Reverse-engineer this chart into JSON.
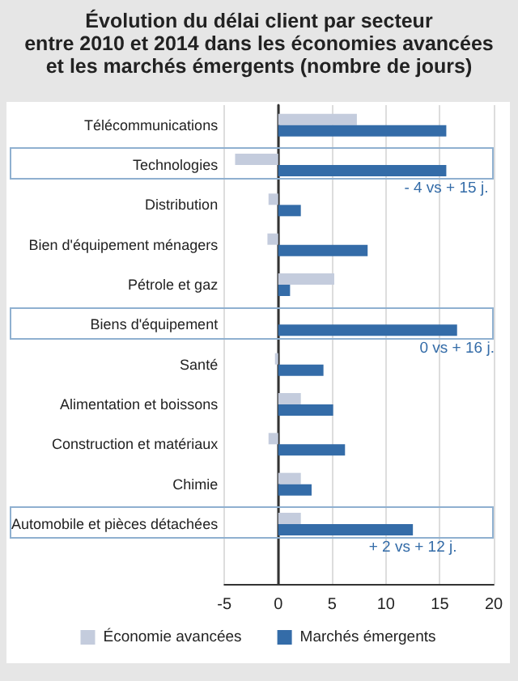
{
  "chart_data": {
    "type": "bar",
    "orientation": "horizontal",
    "title": "Évolution du délai client par secteur\nentre 2010 et 2014 dans les économies avancées\net les marchés émergents (nombre de jours)",
    "categories": [
      "Télécommunications",
      "Technologies",
      "Distribution",
      "Bien d'équipement ménagers",
      "Pétrole et gaz",
      "Biens d'équipement",
      "Santé",
      "Alimentation et boissons",
      "Construction et matériaux",
      "Chimie",
      "Automobile et pièces détachées"
    ],
    "series": [
      {
        "name": "Économie avancées",
        "color": "#c4ccdd",
        "values": [
          7.3,
          -4,
          -0.9,
          -1,
          5.2,
          0,
          -0.3,
          2.1,
          -0.9,
          2.1,
          2.1
        ]
      },
      {
        "name": "Marchés émergents",
        "color": "#346ca8",
        "values": [
          15.6,
          15.6,
          2.1,
          8.3,
          1.1,
          16.6,
          4.2,
          5.1,
          6.2,
          3.1,
          12.5
        ]
      }
    ],
    "xlim": [
      -5,
      20
    ],
    "xticks": [
      -5,
      0,
      5,
      10,
      15,
      20
    ],
    "grid": "x",
    "legend": "bottom",
    "annotations": [
      {
        "text": "- 4 vs + 15 j.",
        "x": 15.6,
        "y": "Technologies"
      },
      {
        "text": "0 vs + 16 j.",
        "x": 16.6,
        "y": "Biens d'équipement"
      },
      {
        "text": "+ 2 vs + 12 j.",
        "x": 12.5,
        "y": "Automobile et pièces détachées"
      }
    ]
  }
}
